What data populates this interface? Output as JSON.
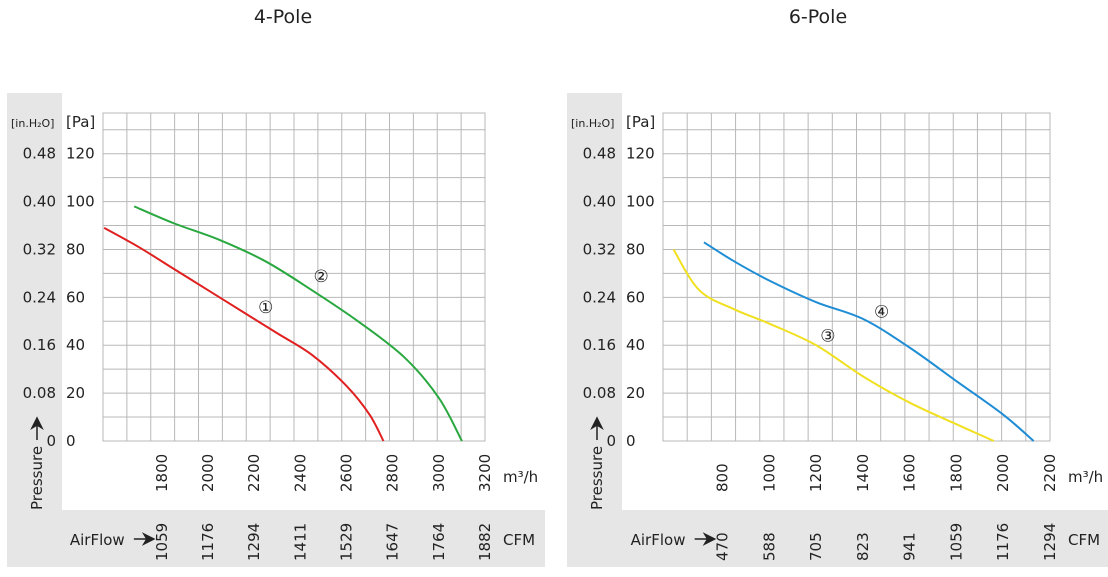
{
  "chart_data": [
    {
      "type": "line",
      "title": "4-Pole",
      "ylabel": "Pressure",
      "ylabel_unit_left": "[in.H₂O]",
      "ylabel_unit_right": "[Pa]",
      "xlabel_bottom": "AirFlow",
      "x_unit": "m³/h",
      "x_unit_secondary": "CFM",
      "x_ticks": [
        "1800",
        "2000",
        "2200",
        "2400",
        "2600",
        "2800",
        "3000",
        "3200"
      ],
      "x_ticks_cfm": [
        "1059",
        "1176",
        "1294",
        "1411",
        "1529",
        "1647",
        "1764",
        "1882"
      ],
      "y_ticks_pa": [
        "0",
        "20",
        "40",
        "60",
        "80",
        "100",
        "120"
      ],
      "y_ticks_inh2o": [
        "0",
        "0.08",
        "0.16",
        "0.24",
        "0.32",
        "0.40",
        "0.48"
      ],
      "xlim": [
        1545,
        3200
      ],
      "ylim": [
        0,
        137
      ],
      "grid": true,
      "series": [
        {
          "name": "①",
          "color": "#e02020",
          "x": [
            1550,
            1700,
            1850,
            2000,
            2150,
            2300,
            2450,
            2600,
            2700,
            2760
          ],
          "y": [
            89,
            81,
            72,
            63,
            54,
            45,
            36,
            23,
            11,
            0
          ],
          "label_at": [
            2250,
            56
          ]
        },
        {
          "name": "②",
          "color": "#2aa840",
          "x": [
            1680,
            1850,
            2050,
            2250,
            2450,
            2650,
            2850,
            3000,
            3100
          ],
          "y": [
            98,
            91,
            84,
            75,
            63,
            50,
            35,
            18,
            0
          ],
          "label_at": [
            2490,
            69
          ]
        }
      ]
    },
    {
      "type": "line",
      "title": "6-Pole",
      "ylabel": "Pressure",
      "ylabel_unit_left": "[in.H₂O]",
      "ylabel_unit_right": "[Pa]",
      "xlabel_bottom": "AirFlow",
      "x_unit": "m³/h",
      "x_unit_secondary": "CFM",
      "x_ticks": [
        "800",
        "1000",
        "1200",
        "1400",
        "1600",
        "1800",
        "2000",
        "2200"
      ],
      "x_ticks_cfm": [
        "470",
        "588",
        "705",
        "823",
        "941",
        "1059",
        "1176",
        "1294"
      ],
      "y_ticks_pa": [
        "0",
        "20",
        "40",
        "60",
        "80",
        "100",
        "120"
      ],
      "y_ticks_inh2o": [
        "0",
        "0.08",
        "0.16",
        "0.24",
        "0.32",
        "0.40",
        "0.48"
      ],
      "xlim": [
        545,
        2200
      ],
      "ylim": [
        0,
        137
      ],
      "grid": true,
      "series": [
        {
          "name": "③",
          "color": "#f0e020",
          "x": [
            590,
            700,
            850,
            1000,
            1200,
            1400,
            1600,
            1800,
            1960
          ],
          "y": [
            80,
            63,
            55,
            49,
            40,
            27,
            16,
            7,
            0
          ],
          "label_at": [
            1250,
            44
          ]
        },
        {
          "name": "④",
          "color": "#1f8dd6",
          "x": [
            720,
            850,
            1000,
            1200,
            1400,
            1600,
            1800,
            2000,
            2130
          ],
          "y": [
            83,
            75,
            67,
            58,
            51,
            39,
            25,
            11,
            0
          ],
          "label_at": [
            1480,
            54
          ]
        }
      ]
    }
  ]
}
